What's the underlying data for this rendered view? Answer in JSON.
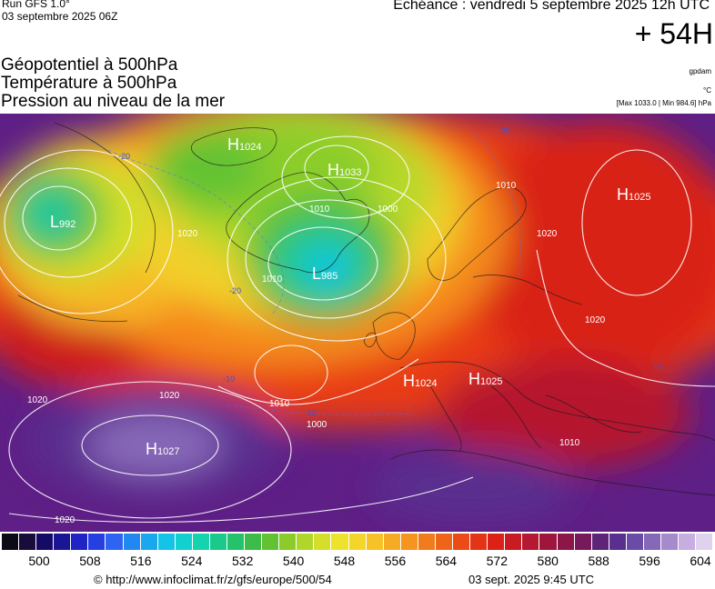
{
  "header": {
    "run": "Run GFS 1.0°",
    "run_date": "03 septembre 2025 06Z",
    "valid": "Echéance : vendredi 5 septembre 2025 12h UTC",
    "lead": "+ 54H"
  },
  "fields": {
    "line1": "Géopotentiel à 500hPa",
    "line2": "Température à 500hPa",
    "line3": "Pression au niveau de la mer"
  },
  "units": {
    "gp": "gpdam",
    "temp": "°C",
    "range": "[Max 1033.0 | Min 984.6] hPa"
  },
  "pressure_centers": [
    {
      "type": "L",
      "value": "992"
    },
    {
      "type": "H",
      "value": "1024"
    },
    {
      "type": "H",
      "value": "1033"
    },
    {
      "type": "L",
      "value": "985"
    },
    {
      "type": "H",
      "value": "1025"
    },
    {
      "type": "H",
      "value": "1024"
    },
    {
      "type": "H",
      "value": "1025"
    },
    {
      "type": "H",
      "value": "1027"
    }
  ],
  "isobar_labels": [
    "1020",
    "1010",
    "1000",
    "1010",
    "1020",
    "1010",
    "1020",
    "1020",
    "1020",
    "1010",
    "1000",
    "1010",
    "1020"
  ],
  "temp_labels": [
    "-20",
    "-20",
    "-20",
    "-10",
    "-10",
    "-10"
  ],
  "legend": {
    "ticks": [
      "500",
      "508",
      "516",
      "524",
      "532",
      "540",
      "548",
      "556",
      "564",
      "572",
      "580",
      "588",
      "596",
      "604"
    ],
    "colors": [
      "#0b0b17",
      "#170c3a",
      "#150a66",
      "#1a1594",
      "#1f24c5",
      "#263fe3",
      "#2f64f2",
      "#2088f0",
      "#1ba7ee",
      "#14c4e8",
      "#12cfd0",
      "#16d3b0",
      "#1bc98c",
      "#24c26a",
      "#3cbc48",
      "#63c232",
      "#8bcb2c",
      "#b1d62a",
      "#d3df2a",
      "#eee32a",
      "#f4d52a",
      "#f6c228",
      "#f6ab24",
      "#f5941f",
      "#f27c1b",
      "#ee6418",
      "#ea4b17",
      "#e53316",
      "#dc2216",
      "#c81b24",
      "#b51831",
      "#9f163d",
      "#8b1647",
      "#761a5c",
      "#5e2478",
      "#5a2f8f",
      "#6a4ca6",
      "#8668b8",
      "#a58bcb",
      "#c6aee0",
      "#dfd2ee"
    ]
  },
  "footer": {
    "url": "© http://www.infoclimat.fr/z/gfs/europe/500/54",
    "generated": "03 sept. 2025  9:45 UTC"
  }
}
